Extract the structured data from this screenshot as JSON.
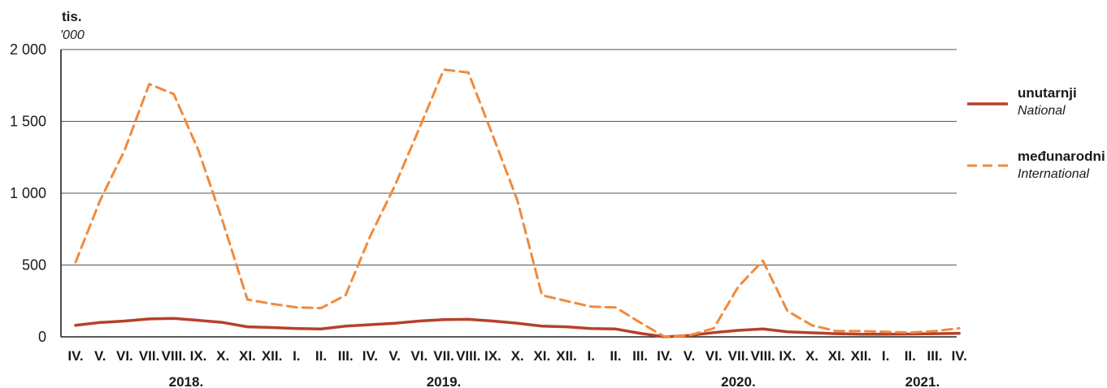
{
  "chart_data": {
    "type": "line",
    "ylabel": "tis.",
    "ylabel_en": "'000",
    "ylim": [
      0,
      2000
    ],
    "y_ticks": [
      "2 000",
      "1 500",
      "1 000",
      "500",
      "0"
    ],
    "y_tick_values": [
      2000,
      1500,
      1000,
      500,
      0
    ],
    "grid": true,
    "legend_position": "right",
    "categories": [
      "IV.",
      "V.",
      "VI.",
      "VII.",
      "VIII.",
      "IX.",
      "X.",
      "XI.",
      "XII.",
      "I.",
      "II.",
      "III.",
      "IV.",
      "V.",
      "VI.",
      "VII.",
      "VIII.",
      "IX.",
      "X.",
      "XI.",
      "XII.",
      "I.",
      "II.",
      "III.",
      "IV.",
      "V.",
      "VI.",
      "VII.",
      "VIII.",
      "IX.",
      "X.",
      "XI.",
      "XII.",
      "I.",
      "II.",
      "III.",
      "IV."
    ],
    "years": [
      {
        "label": "2018.",
        "center_index": 4.5
      },
      {
        "label": "2019.",
        "center_index": 15
      },
      {
        "label": "2020.",
        "center_index": 27
      },
      {
        "label": "2021.",
        "center_index": 34.5
      }
    ],
    "series": [
      {
        "name": "unutarnji",
        "name_en": "National",
        "color": "#b5412a",
        "style": "solid",
        "values": [
          80,
          100,
          110,
          125,
          128,
          115,
          100,
          70,
          65,
          58,
          55,
          75,
          85,
          95,
          110,
          120,
          122,
          110,
          95,
          75,
          70,
          58,
          55,
          25,
          0,
          10,
          30,
          45,
          55,
          35,
          28,
          22,
          18,
          18,
          20,
          22,
          25
        ]
      },
      {
        "name": "međunarodni",
        "name_en": "International",
        "color": "#f08a3c",
        "style": "dashed",
        "values": [
          520,
          950,
          1300,
          1760,
          1690,
          1300,
          800,
          260,
          230,
          205,
          200,
          290,
          700,
          1050,
          1450,
          1860,
          1840,
          1400,
          950,
          290,
          250,
          210,
          205,
          100,
          0,
          10,
          60,
          350,
          530,
          180,
          80,
          40,
          40,
          35,
          30,
          40,
          60
        ]
      }
    ]
  }
}
